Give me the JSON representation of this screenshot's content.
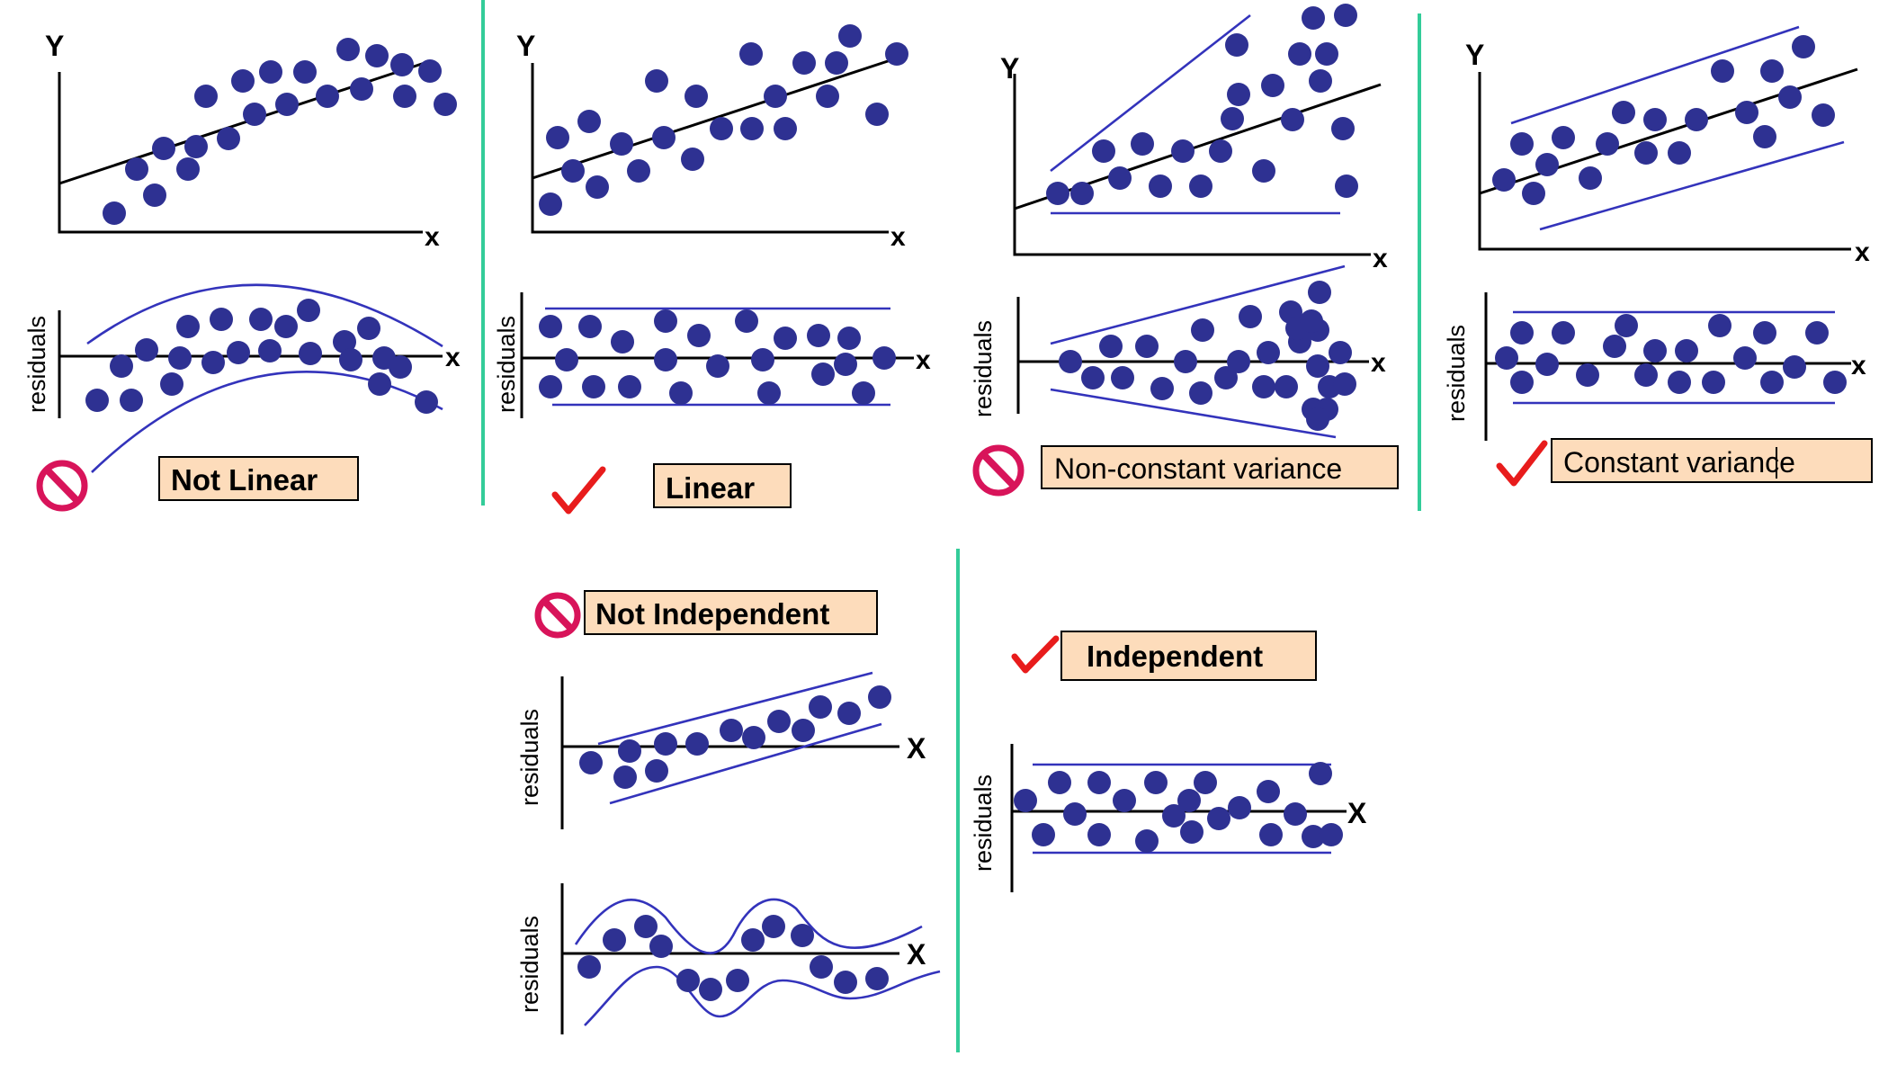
{
  "axis_labels": {
    "y": "Y",
    "x_lower": "x",
    "x_upper": "X",
    "residuals": "residuals"
  },
  "panels": {
    "not_linear": {
      "label": "Not Linear",
      "verdict": "bad"
    },
    "linear": {
      "label": "Linear",
      "verdict": "good"
    },
    "non_constant_variance": {
      "label": "Non-constant variance",
      "verdict": "bad"
    },
    "constant_variance": {
      "label": "Constant variance",
      "verdict": "good"
    },
    "not_independent": {
      "label": "Not Independent",
      "verdict": "bad"
    },
    "independent": {
      "label": "Independent",
      "verdict": "good"
    }
  },
  "colors": {
    "dots": "#2e3192",
    "band_lines": "#3333bb",
    "separator": "#33cc99",
    "label_fill": "#fddcbb",
    "check_mark": "#e81c1c",
    "no_symbol": "#d8145a"
  },
  "icons": {
    "good": "check-mark-icon",
    "bad": "prohibited-icon"
  }
}
